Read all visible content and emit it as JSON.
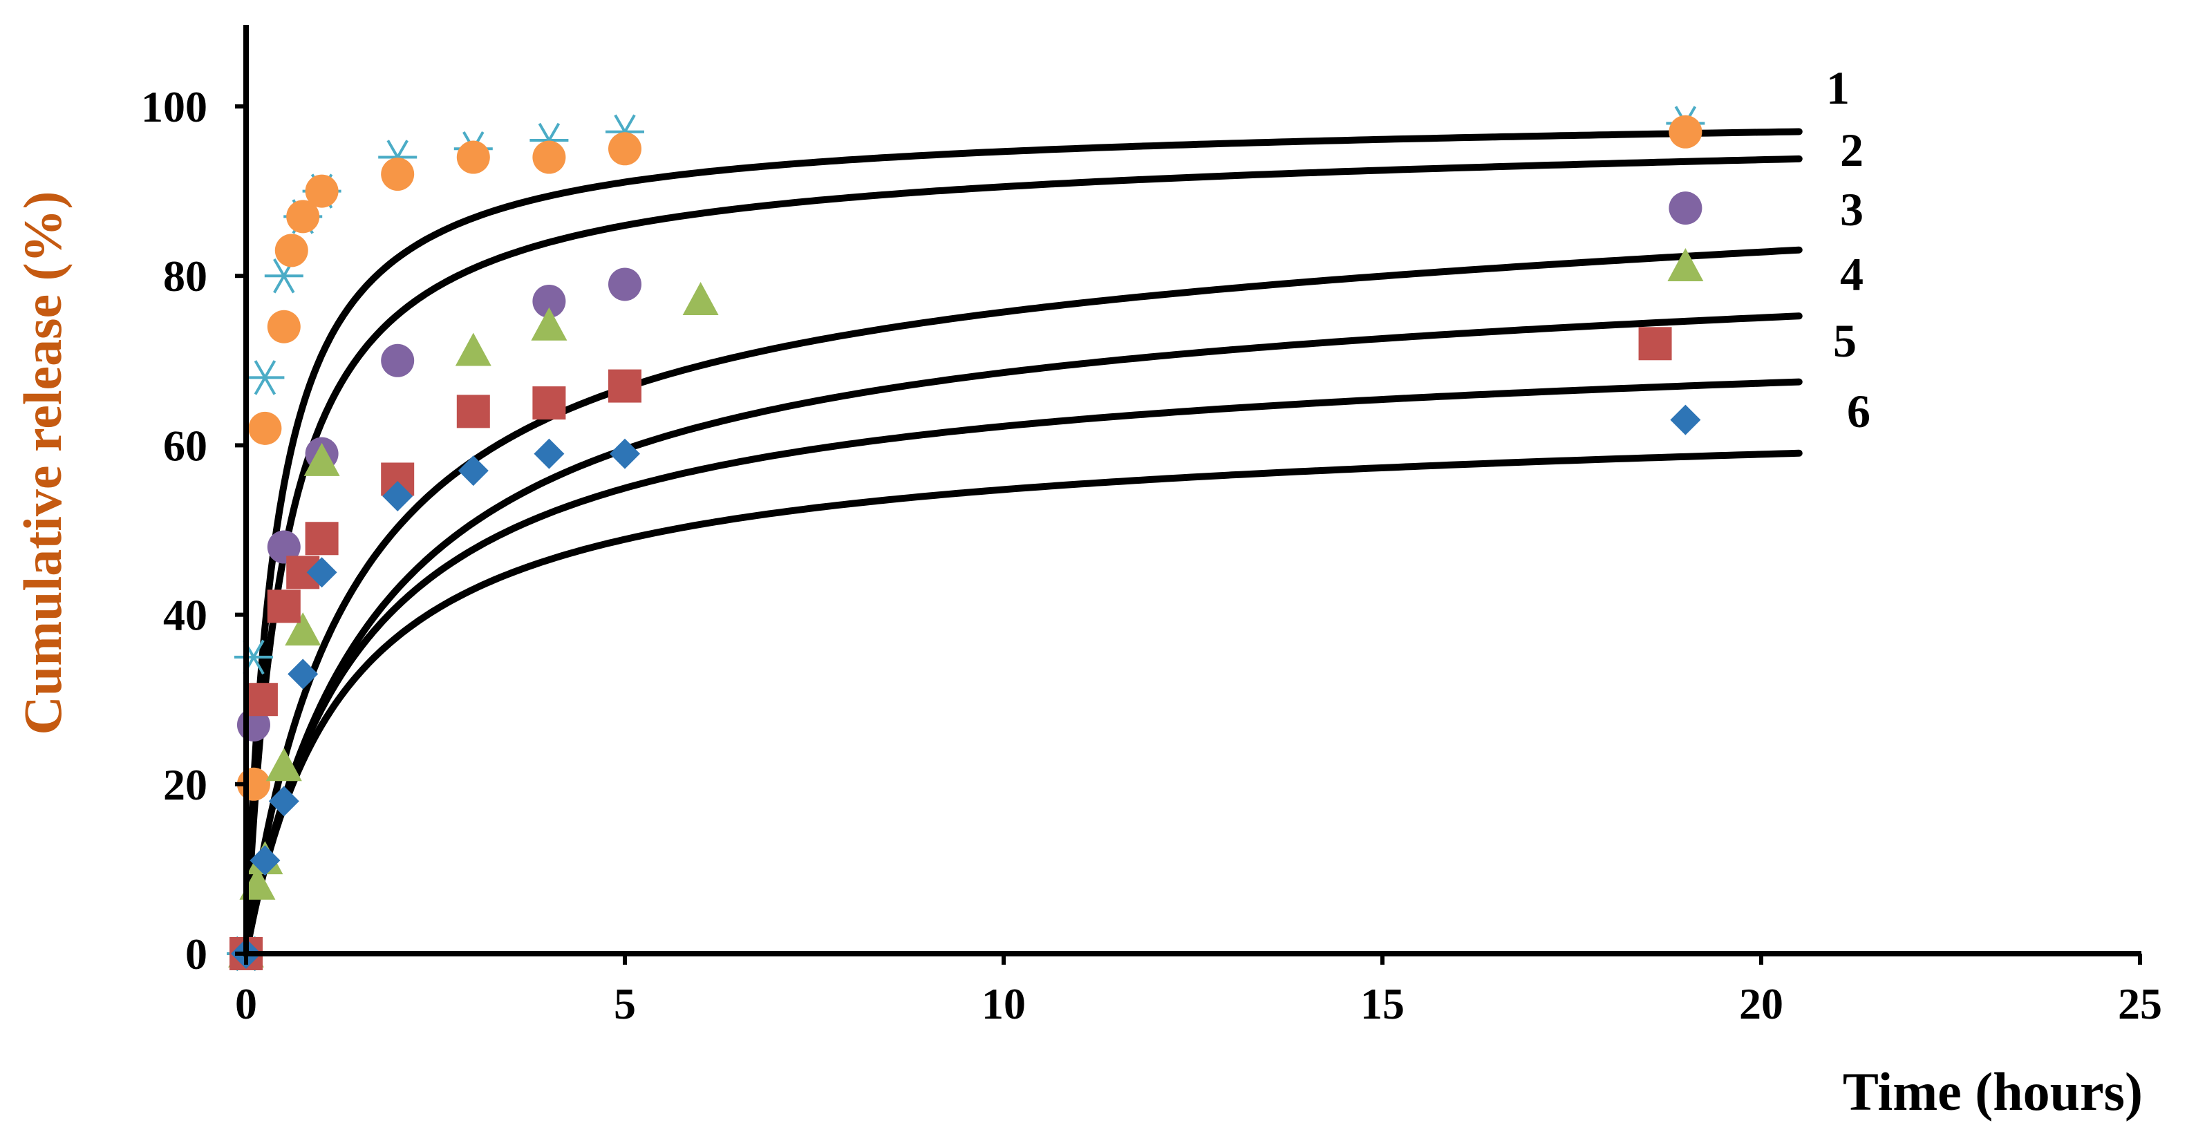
{
  "chart_data": {
    "type": "scatter",
    "xlabel": "Time (hours)",
    "ylabel": "Cumulative release (%)",
    "xlim": [
      0,
      25
    ],
    "ylim": [
      0,
      110
    ],
    "xticks": [
      0,
      5,
      10,
      15,
      20,
      25
    ],
    "yticks": [
      0,
      20,
      40,
      60,
      80,
      100
    ],
    "x_tick_labels": [
      "0",
      "5",
      "10",
      "15",
      "20",
      "25"
    ],
    "y_tick_labels": [
      "0",
      "20",
      "40",
      "60",
      "80",
      "100"
    ],
    "grid": false,
    "legend": "none",
    "curve_labels_position": "right-end-of-curves",
    "colors": {
      "axis": "#000000",
      "fit_line": "#000000",
      "xlabel": "#000000",
      "ylabel": "#C55A11"
    },
    "series": [
      {
        "label": "1",
        "marker": "asterisk",
        "color": "#4BACC6",
        "points": [
          [
            0,
            0
          ],
          [
            0.1,
            35
          ],
          [
            0.25,
            68
          ],
          [
            0.5,
            80
          ],
          [
            0.75,
            87
          ],
          [
            1,
            90
          ],
          [
            2,
            94
          ],
          [
            3,
            95
          ],
          [
            4,
            96
          ],
          [
            5,
            97
          ],
          [
            19,
            98
          ]
        ],
        "fit": {
          "plateau": 97.8,
          "k": 2.6,
          "slope": 0.05,
          "x_end": 20.5
        }
      },
      {
        "label": "2",
        "marker": "circle",
        "color": "#F79646",
        "points": [
          [
            0,
            0
          ],
          [
            0.1,
            20
          ],
          [
            0.25,
            62
          ],
          [
            0.5,
            74
          ],
          [
            0.6,
            83
          ],
          [
            0.75,
            87
          ],
          [
            1,
            90
          ],
          [
            2,
            92
          ],
          [
            3,
            94
          ],
          [
            4,
            94
          ],
          [
            5,
            95
          ],
          [
            19,
            97
          ]
        ],
        "fit": {
          "plateau": 94.0,
          "k": 2.0,
          "slope": 0.1,
          "x_end": 20.5
        }
      },
      {
        "label": "3",
        "marker": "circle",
        "color": "#8064A2",
        "points": [
          [
            0,
            0
          ],
          [
            0.1,
            27
          ],
          [
            0.5,
            48
          ],
          [
            1,
            59
          ],
          [
            2,
            70
          ],
          [
            4,
            77
          ],
          [
            5,
            79
          ],
          [
            19,
            88
          ]
        ],
        "fit": {
          "plateau": 83.0,
          "k": 0.75,
          "slope": 0.25,
          "x_end": 20.5
        }
      },
      {
        "label": "4",
        "marker": "triangle",
        "color": "#9BBB59",
        "points": [
          [
            0,
            0
          ],
          [
            0.15,
            8
          ],
          [
            0.25,
            11
          ],
          [
            0.5,
            22
          ],
          [
            0.75,
            38
          ],
          [
            1,
            58
          ],
          [
            3,
            71
          ],
          [
            4,
            74
          ],
          [
            6,
            77
          ],
          [
            19,
            81
          ]
        ],
        "fit": {
          "plateau": 78.5,
          "k": 0.6,
          "slope": 0.13,
          "x_end": 20.5
        }
      },
      {
        "label": "5",
        "marker": "square",
        "color": "#C0504D",
        "points": [
          [
            0,
            0
          ],
          [
            0.2,
            30
          ],
          [
            0.5,
            41
          ],
          [
            0.75,
            45
          ],
          [
            1,
            49
          ],
          [
            2,
            56
          ],
          [
            3,
            64
          ],
          [
            4,
            65
          ],
          [
            5,
            67
          ],
          [
            18.6,
            72
          ]
        ],
        "fit": {
          "plateau": 70.0,
          "k": 0.7,
          "slope": 0.1,
          "x_end": 20.5
        }
      },
      {
        "label": "6",
        "marker": "diamond",
        "color": "#2E75B6",
        "points": [
          [
            0,
            0
          ],
          [
            0.25,
            11
          ],
          [
            0.5,
            18
          ],
          [
            0.75,
            33
          ],
          [
            1,
            45
          ],
          [
            2,
            54
          ],
          [
            3,
            57
          ],
          [
            4,
            59
          ],
          [
            5,
            59
          ],
          [
            19,
            63
          ]
        ],
        "fit": {
          "plateau": 60.5,
          "k": 0.8,
          "slope": 0.1,
          "x_end": 20.5
        }
      }
    ]
  }
}
